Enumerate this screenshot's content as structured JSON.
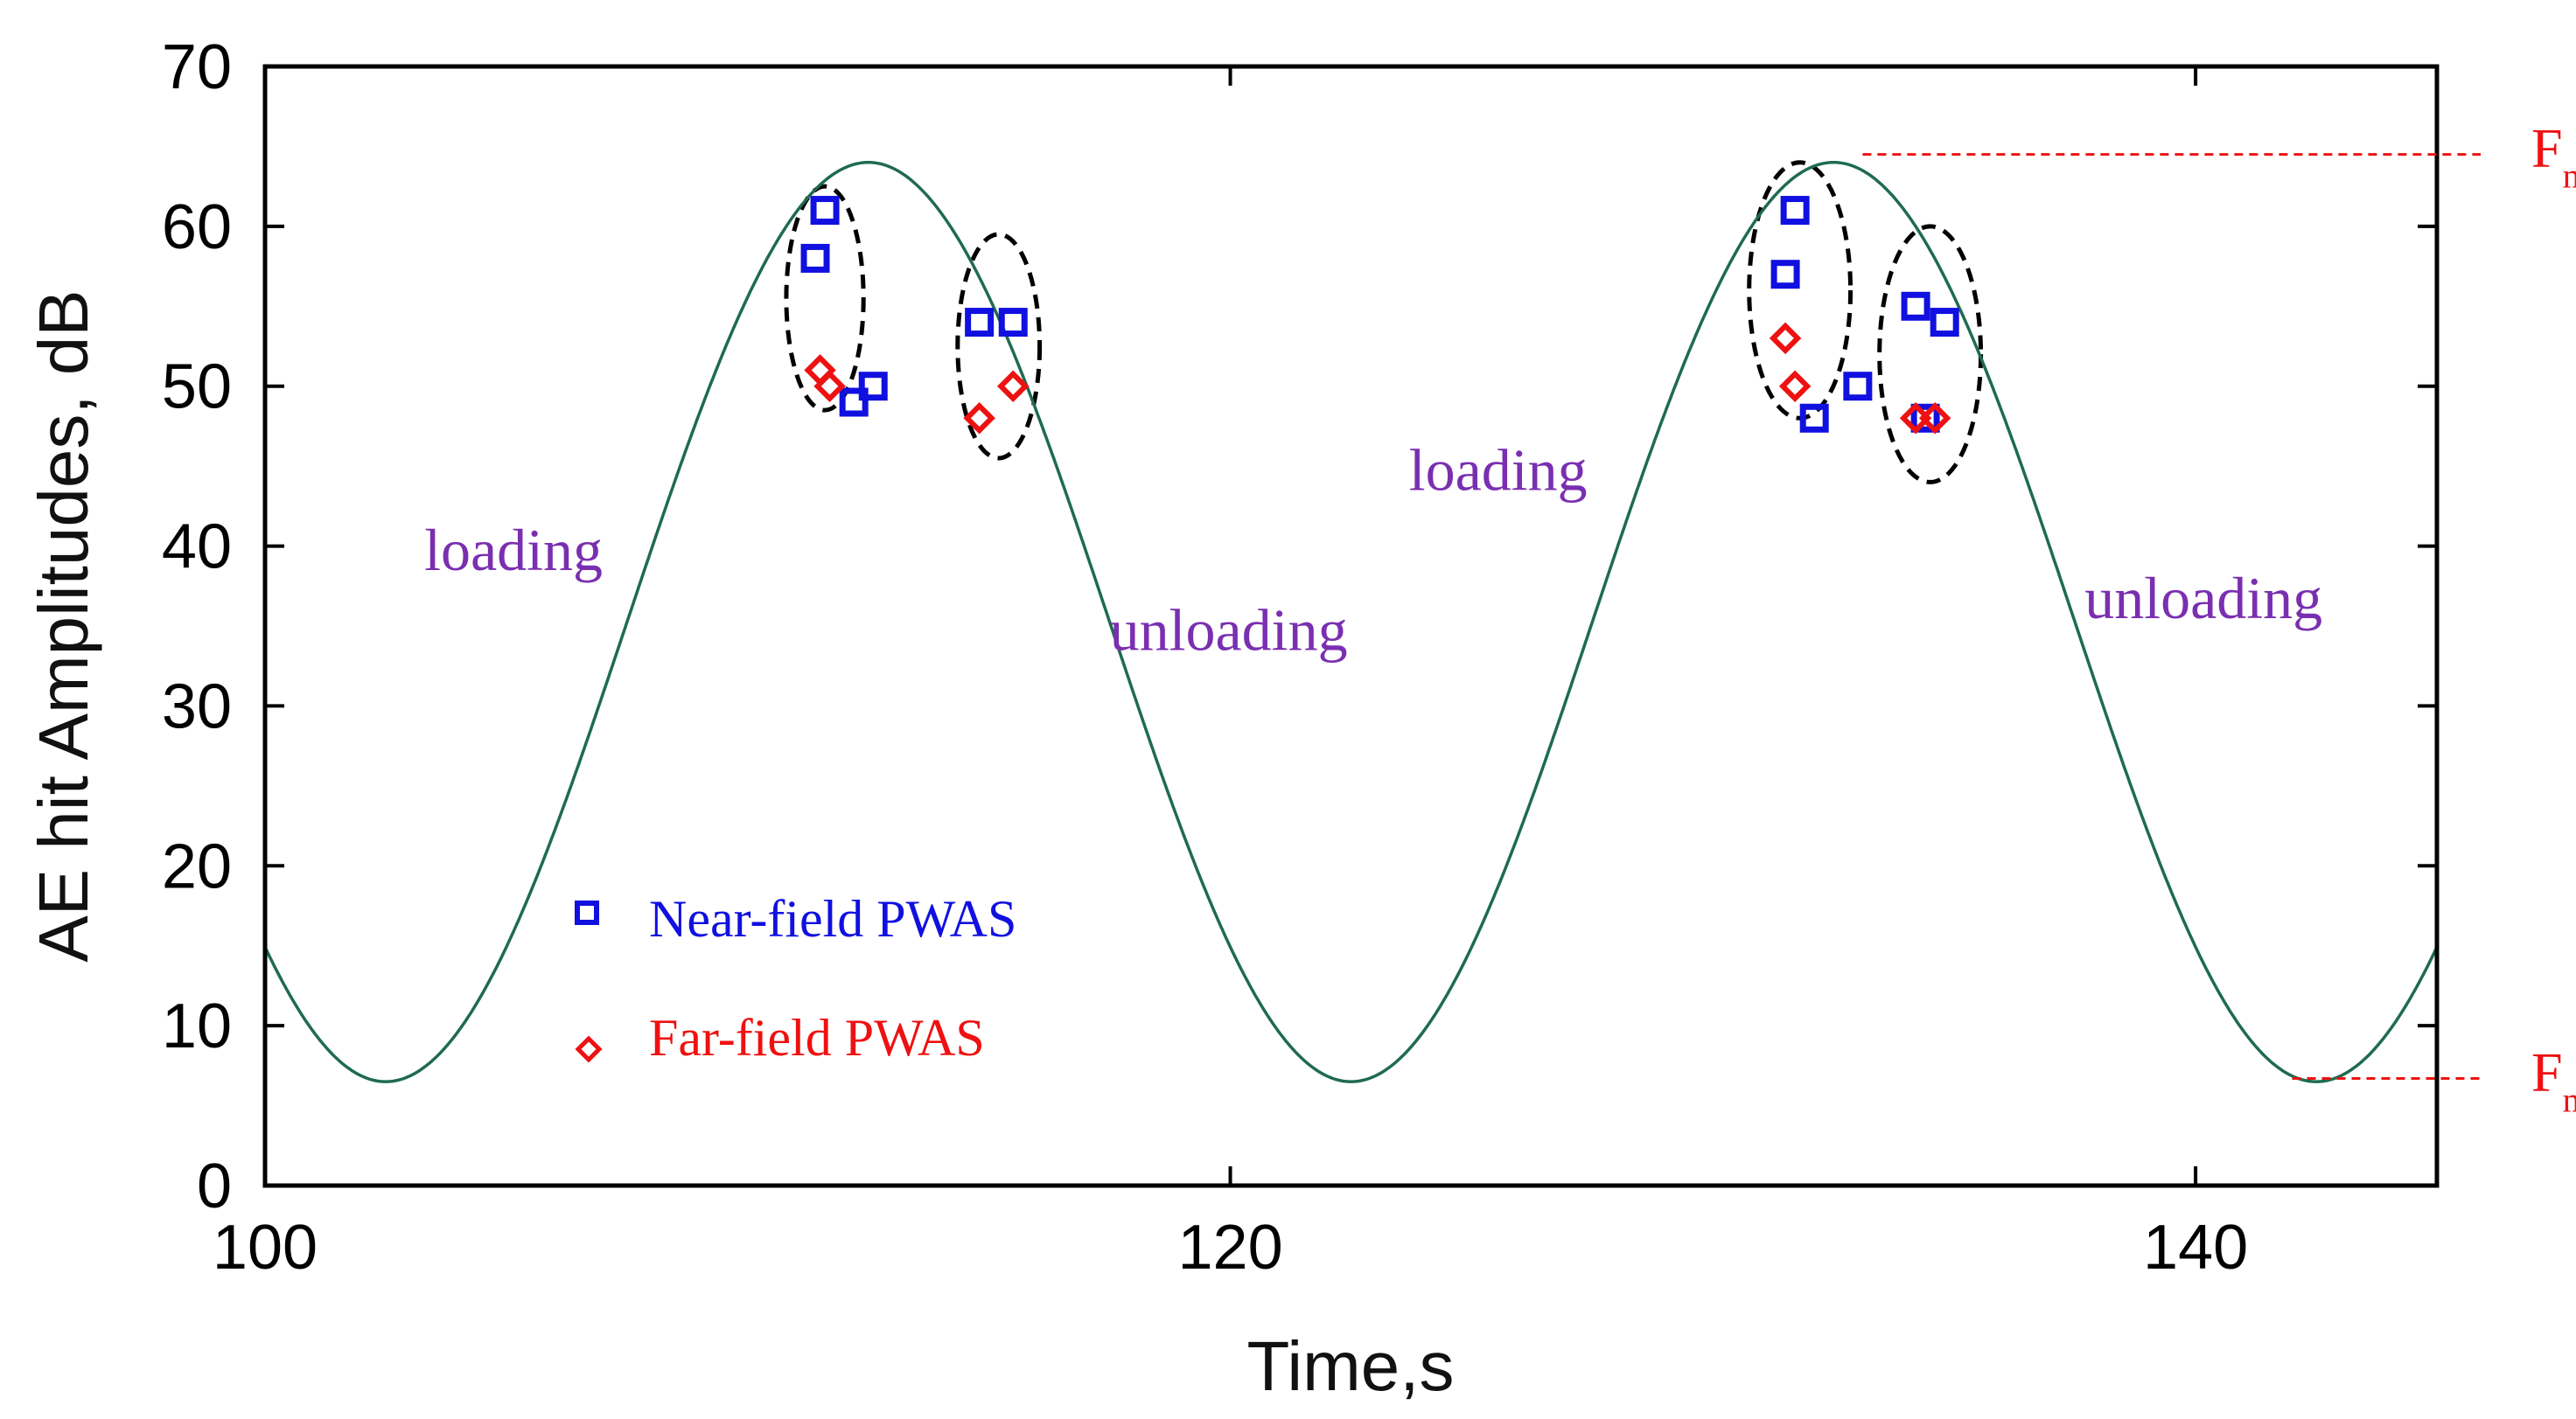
{
  "chart_data": {
    "type": "line",
    "xlabel": "Time,s",
    "ylabel": "AE hit Amplitudes, dB",
    "xlim": [
      100,
      145
    ],
    "ylim": [
      0,
      70
    ],
    "x_ticks": [
      100,
      120,
      140
    ],
    "y_ticks": [
      0,
      10,
      20,
      30,
      40,
      50,
      60,
      70
    ],
    "load_curve": {
      "name": "loading cycle",
      "color": "#1f6b4f",
      "min": 6.5,
      "max": 64,
      "period_s": 20,
      "peak_times_s": [
        112.5,
        132.5
      ]
    },
    "series": [
      {
        "name": "Near-field PWAS",
        "marker": "square",
        "color": "#1010e0",
        "points": [
          {
            "x": 111.4,
            "y": 58
          },
          {
            "x": 111.6,
            "y": 61
          },
          {
            "x": 112.2,
            "y": 49
          },
          {
            "x": 112.6,
            "y": 50
          },
          {
            "x": 114.8,
            "y": 54
          },
          {
            "x": 115.5,
            "y": 54
          },
          {
            "x": 131.5,
            "y": 57
          },
          {
            "x": 131.7,
            "y": 61
          },
          {
            "x": 132.1,
            "y": 48
          },
          {
            "x": 133.0,
            "y": 50
          },
          {
            "x": 134.2,
            "y": 55
          },
          {
            "x": 134.4,
            "y": 48
          },
          {
            "x": 134.8,
            "y": 54
          }
        ]
      },
      {
        "name": "Far-field PWAS",
        "marker": "diamond",
        "color": "#ee1111",
        "points": [
          {
            "x": 111.5,
            "y": 51
          },
          {
            "x": 111.7,
            "y": 50
          },
          {
            "x": 114.8,
            "y": 48
          },
          {
            "x": 115.5,
            "y": 50
          },
          {
            "x": 131.5,
            "y": 53
          },
          {
            "x": 131.7,
            "y": 50
          },
          {
            "x": 134.2,
            "y": 48
          },
          {
            "x": 134.6,
            "y": 48
          }
        ]
      }
    ],
    "ellipses": [
      {
        "cx": 111.6,
        "cy": 55.5,
        "rx": 0.8,
        "ry": 7
      },
      {
        "cx": 115.2,
        "cy": 52.5,
        "rx": 0.85,
        "ry": 7
      },
      {
        "cx": 131.8,
        "cy": 56,
        "rx": 1.05,
        "ry": 8
      },
      {
        "cx": 134.5,
        "cy": 52,
        "rx": 1.05,
        "ry": 8
      }
    ],
    "annotations": [
      {
        "text": "loading",
        "x": 103.3,
        "y": 38.5
      },
      {
        "text": "unloading",
        "x": 117.5,
        "y": 33.5
      },
      {
        "text": "loading",
        "x": 123.7,
        "y": 43.5
      },
      {
        "text": "unloading",
        "x": 137.7,
        "y": 35.5
      }
    ],
    "reference_lines": [
      {
        "name": "F",
        "sub": "max",
        "y": 64.5,
        "x_start": 133.1
      },
      {
        "name": "F",
        "sub": "min",
        "y": 6.7,
        "x_start": 142.0
      }
    ],
    "legend": {
      "position": "bottom-left",
      "entries": [
        "Near-field PWAS",
        "Far-field PWAS"
      ]
    }
  }
}
